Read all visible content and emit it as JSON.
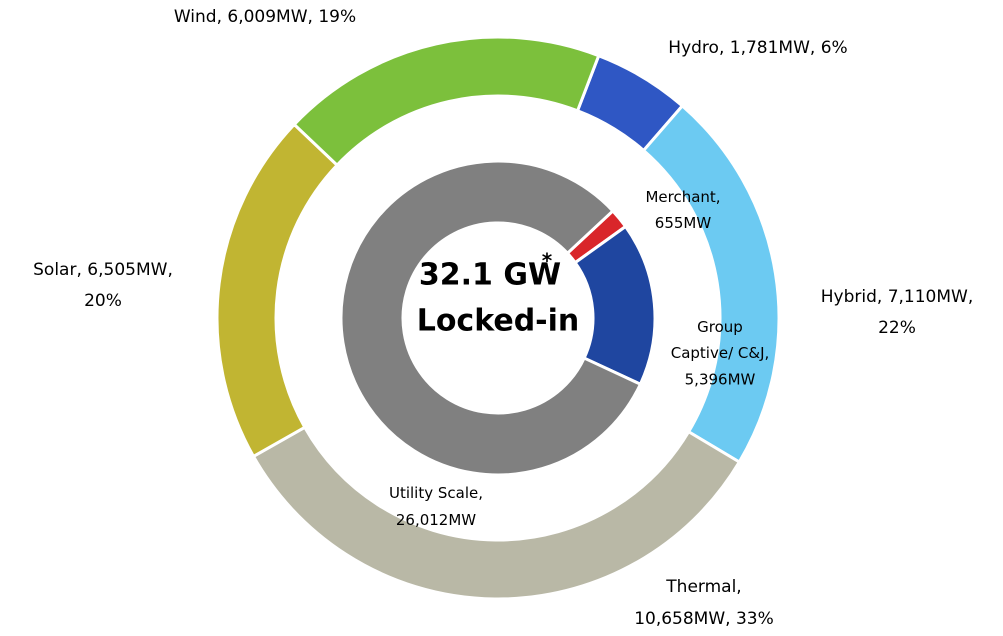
{
  "chart_data": {
    "type": "donut",
    "center_text": [
      "32.1 GW",
      "Locked-in"
    ],
    "center_mark": "*",
    "rings": [
      {
        "name_list": "outer",
        "categories": [
          "Hydro",
          "Hybrid",
          "Thermal",
          "Solar",
          "Wind"
        ],
        "values": [
          1781,
          7110,
          10658,
          6505,
          6009
        ],
        "value_labels": [
          "1,781MW",
          "7,110MW",
          "10,658MW",
          "6,505MW",
          "6,009MW"
        ],
        "percent_labels": [
          "6%",
          "22%",
          "33%",
          "20%",
          "19%"
        ],
        "colors": [
          "#2f57c4",
          "#6ccaf2",
          "#b9b8a6",
          "#c1b532",
          "#7cc03c"
        ]
      },
      {
        "name_list": "inner",
        "categories": [
          "Merchant",
          "Group Captive/ C&J",
          "Utility Scale"
        ],
        "values": [
          655,
          5396,
          26012
        ],
        "value_labels": [
          "655MW",
          "5,396MW",
          "26,012MW"
        ],
        "colors": [
          "#d9262a",
          "#1f46a0",
          "#808080"
        ]
      }
    ]
  }
}
